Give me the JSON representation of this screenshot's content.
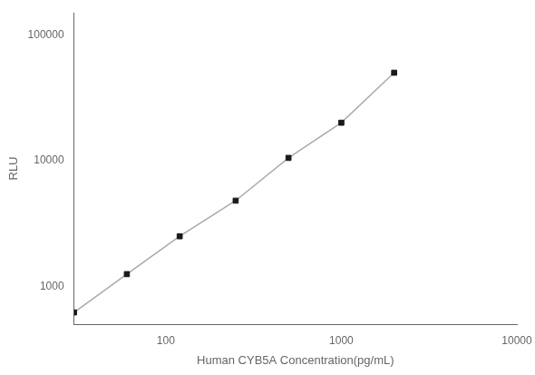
{
  "chart_data": {
    "type": "line",
    "xlabel": "Human CYB5A Concentration(pg/mL)",
    "ylabel": "RLU",
    "x": [
      30,
      60,
      120,
      250,
      500,
      1000,
      2000
    ],
    "series": [
      {
        "type": "line",
        "color": "#aaaaaa",
        "values": [
          620,
          1250,
          2500,
          4800,
          10500,
          20000,
          50000
        ]
      },
      {
        "type": "scatter",
        "color": "#1a1a1a",
        "marker": "square",
        "values": [
          620,
          1250,
          2500,
          4800,
          10500,
          20000,
          50000
        ]
      }
    ],
    "log": true,
    "xlim": [
      30,
      10000
    ],
    "ylim": [
      500,
      150000
    ],
    "xticks": [
      100,
      1000,
      10000
    ],
    "yticks": [
      1000,
      10000,
      100000
    ],
    "grid": false
  }
}
